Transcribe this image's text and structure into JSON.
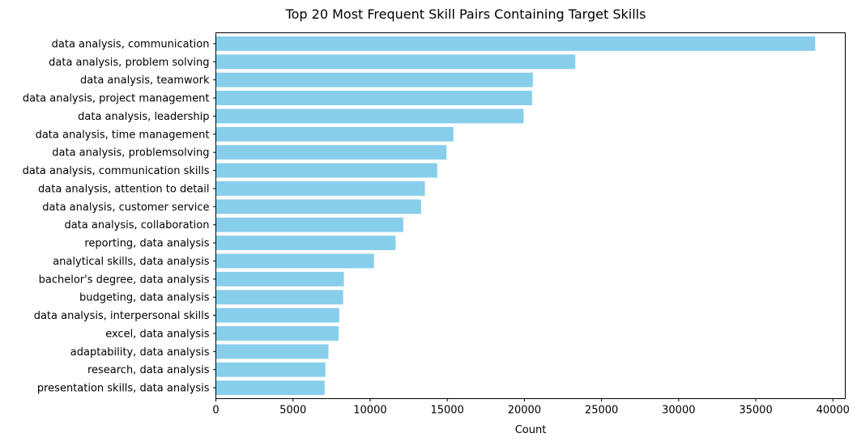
{
  "chart_data": {
    "type": "bar",
    "orientation": "horizontal",
    "title": "Top 20 Most Frequent Skill Pairs Containing Target Skills",
    "xlabel": "Count",
    "ylabel": "",
    "xlim": [
      0,
      40800
    ],
    "xticks": [
      0,
      5000,
      10000,
      15000,
      20000,
      25000,
      30000,
      35000,
      40000
    ],
    "grid": false,
    "legend": "none",
    "bar_color": "#87ceeb",
    "categories": [
      "data analysis, communication",
      "data analysis, problem solving",
      "data analysis, teamwork",
      "data analysis, project management",
      "data analysis, leadership",
      "data analysis, time management",
      "data analysis, problemsolving",
      "data analysis, communication skills",
      "data analysis, attention to detail",
      "data analysis, customer service",
      "data analysis, collaboration",
      "reporting, data analysis",
      "analytical skills, data analysis",
      "bachelor's degree, data analysis",
      "budgeting, data analysis",
      "data analysis, interpersonal skills",
      "excel, data analysis",
      "adaptability, data analysis",
      "research, data analysis",
      "presentation skills, data analysis"
    ],
    "values": [
      38850,
      23300,
      20550,
      20500,
      19950,
      15400,
      14950,
      14350,
      13550,
      13300,
      12150,
      11650,
      10250,
      8300,
      8250,
      8000,
      7950,
      7300,
      7100,
      7050
    ]
  }
}
